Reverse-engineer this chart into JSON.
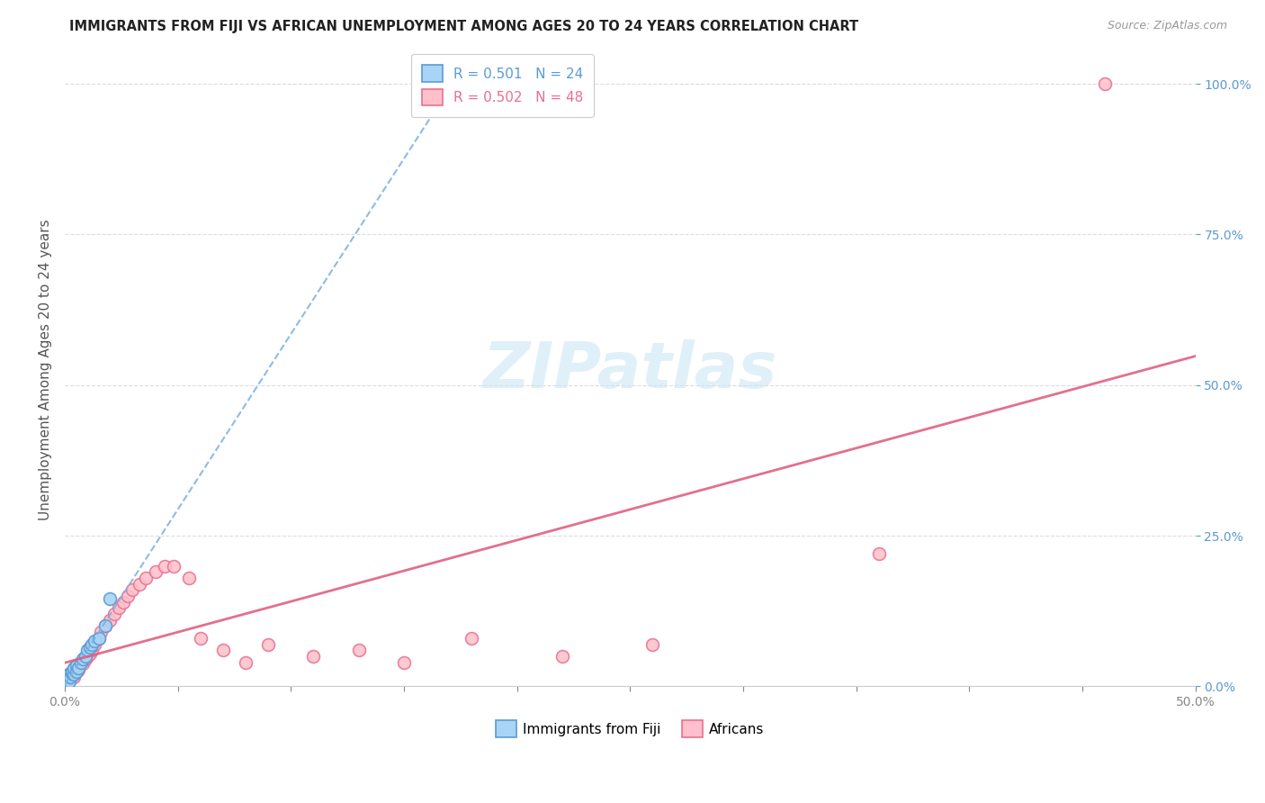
{
  "title": "IMMIGRANTS FROM FIJI VS AFRICAN UNEMPLOYMENT AMONG AGES 20 TO 24 YEARS CORRELATION CHART",
  "source": "Source: ZipAtlas.com",
  "ylabel": "Unemployment Among Ages 20 to 24 years",
  "xlim": [
    0.0,
    0.5
  ],
  "ylim": [
    0.0,
    1.05
  ],
  "fiji_color": "#a8d4f5",
  "fiji_edge_color": "#5b9bd5",
  "african_color": "#ffc0cb",
  "african_edge_color": "#e87090",
  "fiji_trend_color": "#7ab0e0",
  "african_trend_color": "#e06080",
  "fiji_R": 0.501,
  "fiji_N": 24,
  "african_R": 0.502,
  "african_N": 48,
  "legend_label_fiji": "Immigrants from Fiji",
  "legend_label_african": "Africans",
  "background_color": "#ffffff",
  "grid_color": "#dddddd",
  "right_tick_color": "#5b9bd5",
  "marker_size": 10,
  "fiji_x": [
    0.0005,
    0.001,
    0.001,
    0.0015,
    0.002,
    0.002,
    0.0025,
    0.003,
    0.003,
    0.004,
    0.004,
    0.005,
    0.005,
    0.006,
    0.007,
    0.008,
    0.009,
    0.01,
    0.011,
    0.012,
    0.013,
    0.015,
    0.018,
    0.02
  ],
  "fiji_y": [
    0.01,
    0.012,
    0.015,
    0.018,
    0.008,
    0.02,
    0.015,
    0.022,
    0.025,
    0.02,
    0.03,
    0.025,
    0.035,
    0.03,
    0.04,
    0.045,
    0.05,
    0.06,
    0.065,
    0.07,
    0.075,
    0.08,
    0.1,
    0.145
  ],
  "african_x": [
    0.0005,
    0.001,
    0.001,
    0.0015,
    0.002,
    0.002,
    0.003,
    0.003,
    0.004,
    0.004,
    0.005,
    0.005,
    0.006,
    0.006,
    0.007,
    0.008,
    0.009,
    0.01,
    0.011,
    0.012,
    0.013,
    0.015,
    0.016,
    0.018,
    0.02,
    0.022,
    0.024,
    0.026,
    0.028,
    0.03,
    0.033,
    0.036,
    0.04,
    0.044,
    0.048,
    0.055,
    0.06,
    0.07,
    0.08,
    0.09,
    0.11,
    0.13,
    0.15,
    0.18,
    0.22,
    0.26,
    0.36,
    0.46
  ],
  "african_y": [
    0.01,
    0.005,
    0.015,
    0.02,
    0.012,
    0.018,
    0.025,
    0.022,
    0.015,
    0.028,
    0.025,
    0.03,
    0.028,
    0.035,
    0.04,
    0.038,
    0.045,
    0.05,
    0.055,
    0.06,
    0.07,
    0.08,
    0.09,
    0.1,
    0.11,
    0.12,
    0.13,
    0.14,
    0.15,
    0.16,
    0.17,
    0.18,
    0.19,
    0.2,
    0.2,
    0.18,
    0.08,
    0.06,
    0.04,
    0.07,
    0.05,
    0.06,
    0.04,
    0.08,
    0.05,
    0.07,
    0.22,
    1.0
  ]
}
